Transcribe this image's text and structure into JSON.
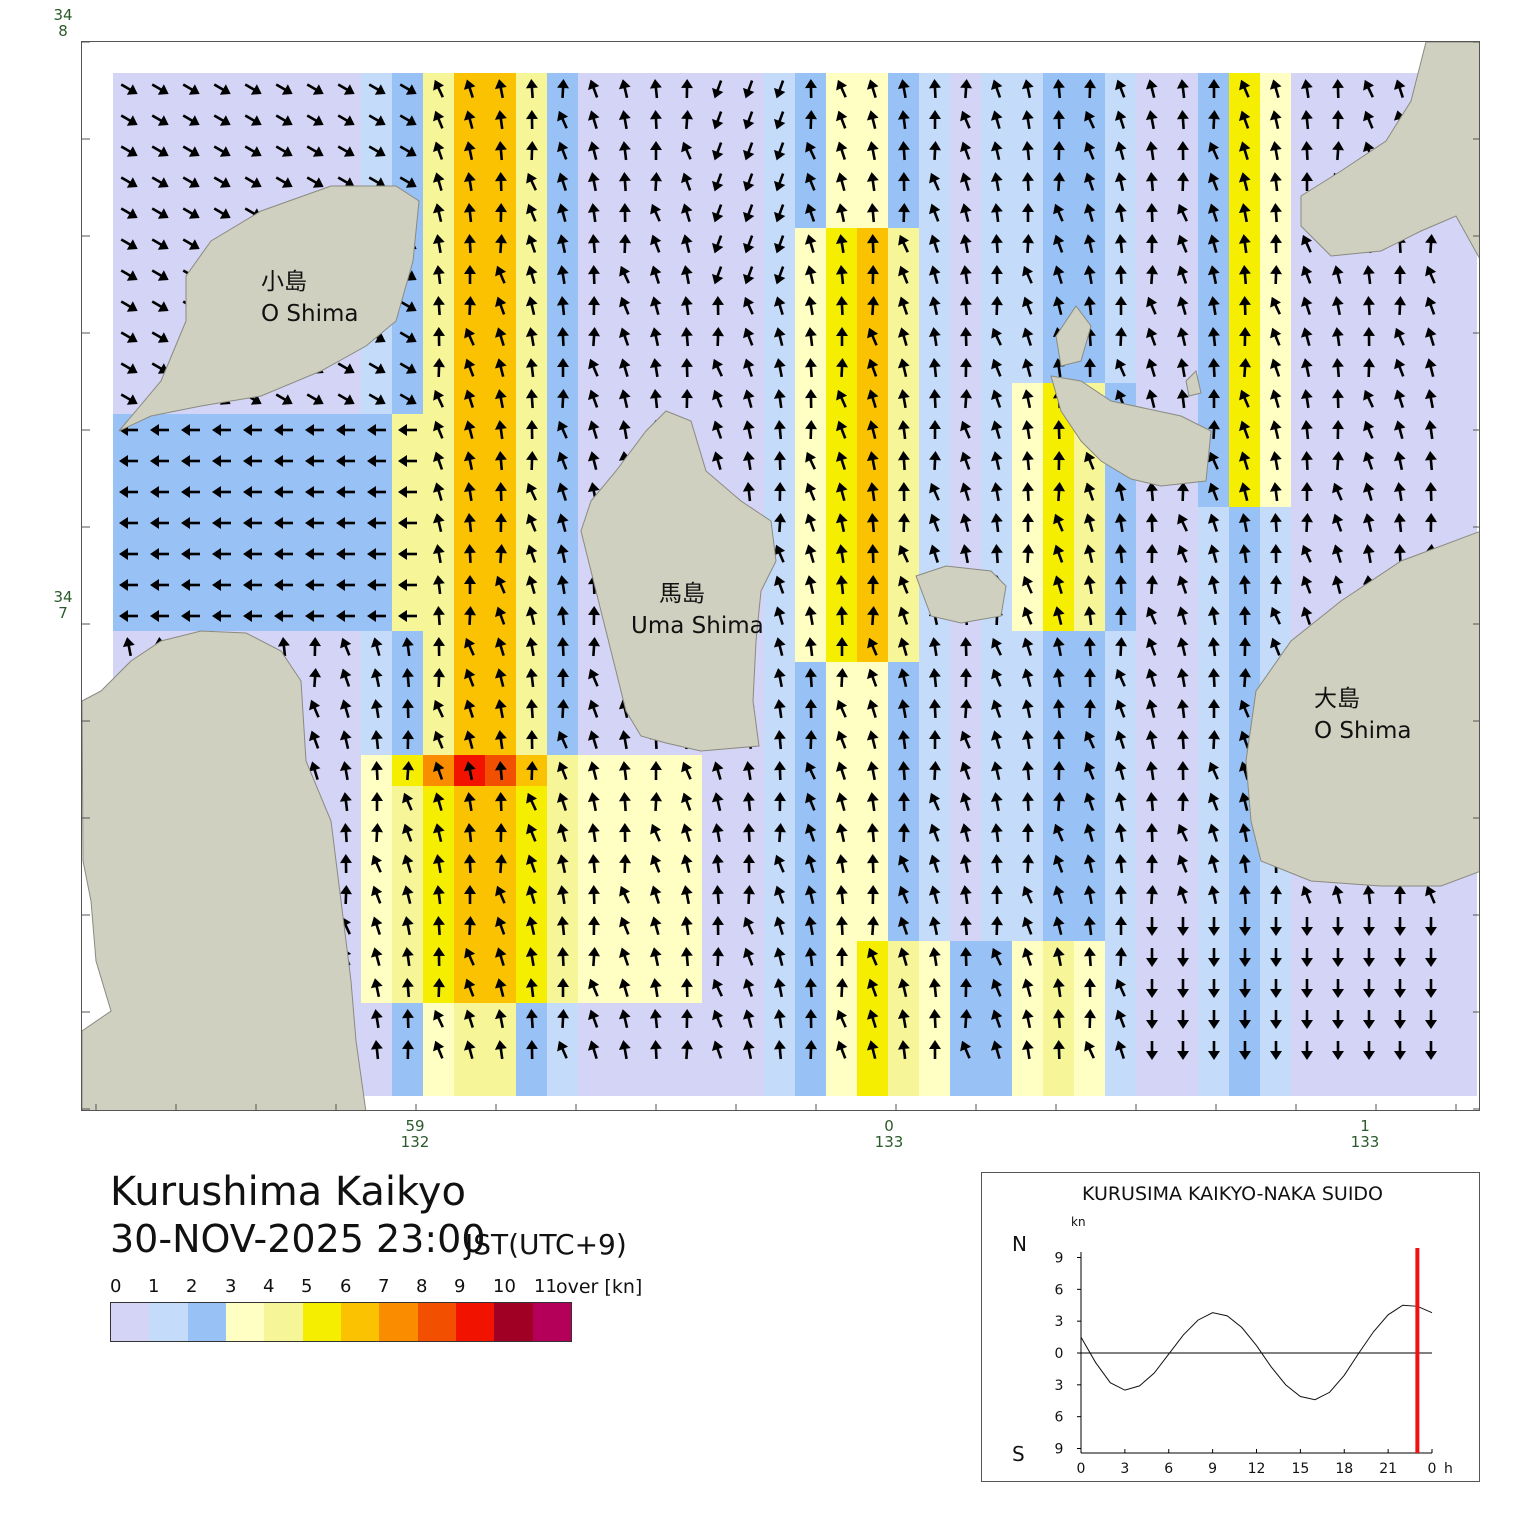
{
  "map": {
    "axis": {
      "lat_top_deg": "34",
      "lat_top_min": "8",
      "lat_mid_deg": "34",
      "lat_mid_min": "7",
      "lon_labels": [
        {
          "min": "59",
          "deg": "132"
        },
        {
          "min": "0",
          "deg": "133"
        },
        {
          "min": "1",
          "deg": "133"
        }
      ]
    },
    "islands": [
      {
        "jp": "小島",
        "en": "O Shima"
      },
      {
        "jp": "馬島",
        "en": "Uma Shima"
      },
      {
        "jp": "大島",
        "en": "O Shima"
      }
    ],
    "colors": {
      "land": "#d0d0c0",
      "water_background": "#ffffff"
    }
  },
  "title": {
    "place": "Kurushima Kaikyo",
    "datetime": "30-NOV-2025 23:00",
    "timezone": "JST(UTC+9)"
  },
  "legend": {
    "labels": [
      "0",
      "1",
      "2",
      "3",
      "4",
      "5",
      "6",
      "7",
      "8",
      "9",
      "10",
      "11"
    ],
    "unit": "over [kn]",
    "colors": [
      "#d4d4f6",
      "#c4dcfa",
      "#98c2f6",
      "#ffffc4",
      "#f6f698",
      "#f6ee00",
      "#fac200",
      "#fa8c00",
      "#f25000",
      "#f21200",
      "#a00024",
      "#b40058"
    ]
  },
  "tide_panel": {
    "title": "KURUSIMA KAIKYO-NAKA SUIDO",
    "unit": "kn",
    "north_label": "N",
    "south_label": "S",
    "y_ticks": [
      "9",
      "6",
      "3",
      "0",
      "3",
      "6",
      "9"
    ],
    "x_ticks": [
      "0",
      "3",
      "6",
      "9",
      "12",
      "15",
      "18",
      "21",
      "0"
    ],
    "x_unit": "h",
    "current_time_marker_color": "#ee1111"
  },
  "chart_data": {
    "type": "line",
    "title": "KURUSIMA KAIKYO-NAKA SUIDO",
    "xlabel": "h",
    "ylabel": "kn",
    "xlim": [
      0,
      24
    ],
    "ylim": [
      -9,
      9
    ],
    "x": [
      0,
      1,
      2,
      3,
      4,
      5,
      6,
      7,
      8,
      9,
      10,
      11,
      12,
      13,
      14,
      15,
      16,
      17,
      18,
      19,
      20,
      21,
      22,
      23,
      24
    ],
    "series": [
      {
        "values": [
          1.5,
          -0.9,
          -2.8,
          -3.5,
          -3.1,
          -1.9,
          -0.1,
          1.7,
          3.1,
          3.8,
          3.5,
          2.4,
          0.7,
          -1.3,
          -3.0,
          -4.1,
          -4.4,
          -3.7,
          -2.1,
          0.0,
          2.0,
          3.6,
          4.5,
          4.4,
          3.8
        ]
      }
    ],
    "current_time": 23
  }
}
